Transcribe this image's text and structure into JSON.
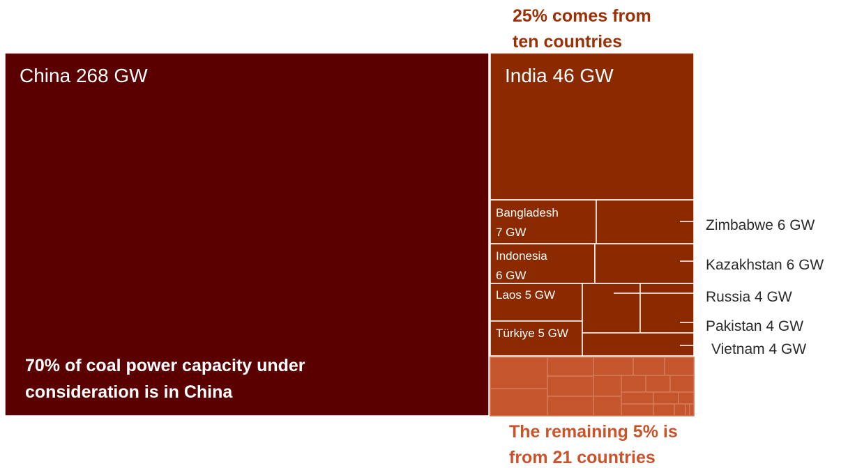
{
  "chart_data": {
    "type": "treemap",
    "title": "",
    "units": "GW",
    "colors": {
      "china": "#5a0000",
      "top_ten": "#8b2a00",
      "remaining": "#c4552c",
      "remaining_border": "#d77a58",
      "annotation_top": "#9c2f05",
      "annotation_bottom": "#c9532a"
    },
    "groups": [
      {
        "name": "China",
        "items": [
          {
            "name": "China",
            "label": "China 268 GW",
            "value": 268
          }
        ]
      },
      {
        "name": "ten countries",
        "items": [
          {
            "name": "India",
            "label": "India 46 GW",
            "value": 46
          },
          {
            "name": "Bangladesh",
            "label": "Bangladesh 7 GW",
            "label_lines": [
              "Bangladesh",
              "7 GW"
            ],
            "value": 7
          },
          {
            "name": "Zimbabwe",
            "label": "Zimbabwe 6 GW",
            "value": 6
          },
          {
            "name": "Indonesia",
            "label": "Indonesia 6 GW",
            "label_lines": [
              "Indonesia",
              "6 GW"
            ],
            "value": 6
          },
          {
            "name": "Kazakhstan",
            "label": "Kazakhstan 6 GW",
            "value": 6
          },
          {
            "name": "Laos",
            "label": "Laos 5 GW",
            "value": 5
          },
          {
            "name": "Russia",
            "label": "Russia 4 GW",
            "value": 4
          },
          {
            "name": "Pakistan",
            "label": "Pakistan 4 GW",
            "value": 4
          },
          {
            "name": "Türkiye",
            "label": "Türkiye 5 GW",
            "value": 5
          },
          {
            "name": "Vietnam",
            "label": "Vietnam 4 GW",
            "value": 4
          }
        ]
      },
      {
        "name": "remaining 21 countries",
        "count": 21,
        "share_percent": 5
      }
    ],
    "annotations": {
      "china": [
        "70% of coal power capacity under",
        "consideration is in China"
      ],
      "top": [
        "25% comes from",
        "ten countries"
      ],
      "bottom": [
        "The remaining 5% is",
        "from 21 countries"
      ]
    }
  }
}
